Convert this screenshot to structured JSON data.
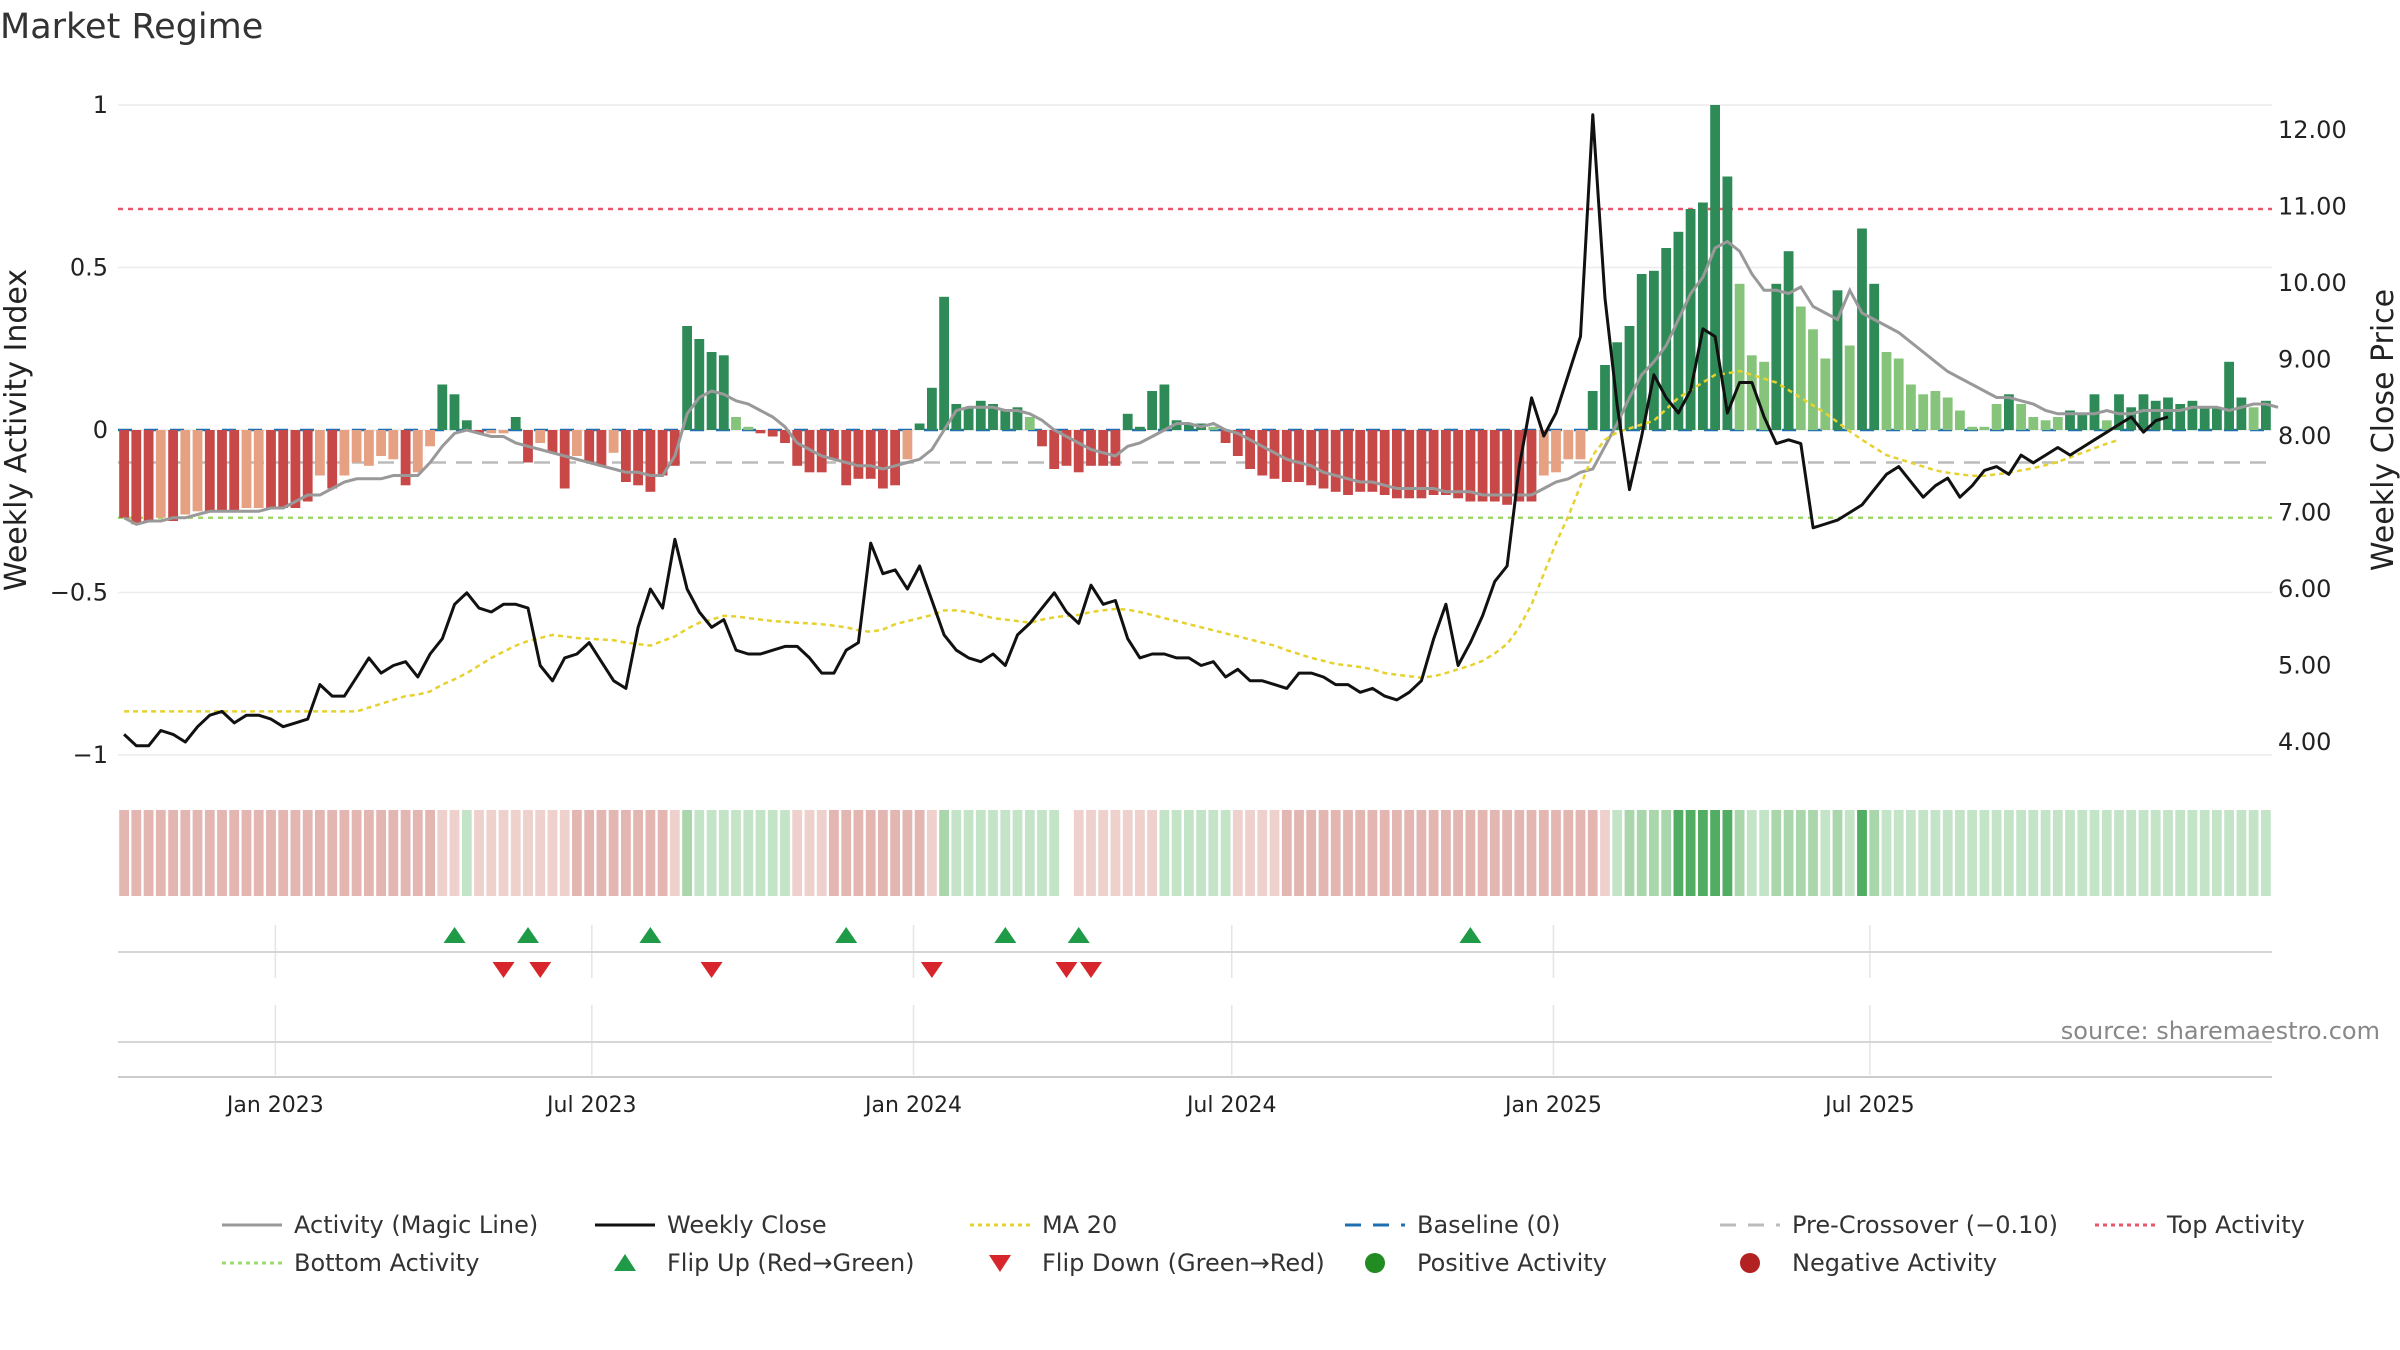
{
  "chart_data": {
    "type": "bar",
    "title": "Market Regime",
    "source": "source: sharemaestro.com",
    "ylabel": "Weekly Activity Index",
    "y2label": "Weekly Close Price",
    "ylim": [
      -1.05,
      1.05
    ],
    "y2lim": [
      3.8,
      12.4
    ],
    "yticks": [
      "1",
      "0.5",
      "0",
      "−0.5",
      "−1"
    ],
    "ytick_values": [
      1,
      0.5,
      0,
      -0.5,
      -1
    ],
    "y2ticks": [
      "12.00",
      "11.00",
      "10.00",
      "9.00",
      "8.00",
      "7.00",
      "6.00",
      "5.00",
      "4.00"
    ],
    "y2tick_values": [
      12,
      11,
      10,
      9,
      8,
      7,
      6,
      5,
      4
    ],
    "xticks": [
      "Jan 2023",
      "Jul 2023",
      "Jan 2024",
      "Jul 2024",
      "Jan 2025",
      "Jul 2025"
    ],
    "xtick_dates": [
      "2023-01-01",
      "2023-07-01",
      "2024-01-01",
      "2024-07-01",
      "2025-01-01",
      "2025-07-01"
    ],
    "start_date": "2022-10-03",
    "top_activity": 0.68,
    "bottom_activity": -0.27,
    "pre_crossover": -0.1,
    "baseline": 0,
    "activity": [
      -0.27,
      -0.29,
      -0.28,
      -0.27,
      -0.28,
      -0.26,
      -0.25,
      -0.25,
      -0.25,
      -0.25,
      -0.24,
      -0.24,
      -0.24,
      -0.24,
      -0.24,
      -0.22,
      -0.14,
      -0.18,
      -0.14,
      -0.1,
      -0.11,
      -0.08,
      -0.09,
      -0.17,
      -0.13,
      -0.05,
      0.14,
      0.11,
      0.03,
      -0.01,
      -0.01,
      -0.01,
      0.04,
      -0.1,
      -0.04,
      -0.07,
      -0.18,
      -0.08,
      -0.1,
      -0.11,
      -0.07,
      -0.16,
      -0.17,
      -0.19,
      -0.14,
      -0.11,
      0.32,
      0.28,
      0.24,
      0.23,
      0.04,
      0.01,
      -0.01,
      -0.02,
      -0.04,
      -0.11,
      -0.13,
      -0.13,
      -0.09,
      -0.17,
      -0.15,
      -0.15,
      -0.18,
      -0.17,
      -0.09,
      0.02,
      0.13,
      0.41,
      0.08,
      0.07,
      0.09,
      0.08,
      0.06,
      0.07,
      0.04,
      -0.05,
      -0.12,
      -0.11,
      -0.13,
      -0.11,
      -0.11,
      -0.11,
      0.05,
      0.01,
      0.12,
      0.14,
      0.03,
      0.02,
      0.02,
      0.01,
      -0.04,
      -0.08,
      -0.12,
      -0.14,
      -0.15,
      -0.16,
      -0.16,
      -0.17,
      -0.18,
      -0.19,
      -0.2,
      -0.19,
      -0.19,
      -0.2,
      -0.21,
      -0.21,
      -0.21,
      -0.2,
      -0.2,
      -0.21,
      -0.22,
      -0.22,
      -0.22,
      -0.23,
      -0.22,
      -0.22,
      -0.14,
      -0.13,
      -0.09,
      -0.09,
      0.12,
      0.2,
      0.27,
      0.32,
      0.48,
      0.49,
      0.56,
      0.61,
      0.68,
      0.7,
      1.0,
      0.78,
      0.45,
      0.23,
      0.21,
      0.45,
      0.55,
      0.38,
      0.31,
      0.22,
      0.43,
      0.26,
      0.62,
      0.45,
      0.24,
      0.22,
      0.14,
      0.11,
      0.12,
      0.1,
      0.06,
      0.01,
      0.01,
      0.08,
      0.11,
      0.08,
      0.04,
      0.03,
      0.04,
      0.06,
      0.05,
      0.11,
      0.03,
      0.11,
      0.07,
      0.11,
      0.09,
      0.1,
      0.08,
      0.09,
      0.07,
      0.07,
      0.21,
      0.1,
      0.07,
      0.09
    ],
    "activity_line": [
      -0.27,
      -0.29,
      -0.28,
      -0.28,
      -0.27,
      -0.27,
      -0.26,
      -0.25,
      -0.25,
      -0.25,
      -0.25,
      -0.25,
      -0.24,
      -0.24,
      -0.22,
      -0.2,
      -0.2,
      -0.18,
      -0.16,
      -0.15,
      -0.15,
      -0.15,
      -0.14,
      -0.14,
      -0.14,
      -0.1,
      -0.05,
      -0.01,
      0.0,
      -0.01,
      -0.02,
      -0.02,
      -0.04,
      -0.05,
      -0.06,
      -0.07,
      -0.08,
      -0.09,
      -0.1,
      -0.11,
      -0.12,
      -0.13,
      -0.13,
      -0.14,
      -0.14,
      -0.08,
      0.05,
      0.1,
      0.12,
      0.11,
      0.09,
      0.08,
      0.06,
      0.04,
      0.01,
      -0.04,
      -0.06,
      -0.08,
      -0.09,
      -0.1,
      -0.11,
      -0.11,
      -0.12,
      -0.11,
      -0.1,
      -0.09,
      -0.06,
      0.0,
      0.06,
      0.07,
      0.07,
      0.07,
      0.06,
      0.06,
      0.05,
      0.03,
      -0.0,
      -0.02,
      -0.04,
      -0.06,
      -0.07,
      -0.08,
      -0.05,
      -0.04,
      -0.02,
      0.0,
      0.02,
      0.02,
      0.01,
      0.02,
      0.0,
      -0.01,
      -0.03,
      -0.05,
      -0.07,
      -0.09,
      -0.1,
      -0.11,
      -0.13,
      -0.14,
      -0.15,
      -0.16,
      -0.16,
      -0.17,
      -0.18,
      -0.18,
      -0.18,
      -0.18,
      -0.19,
      -0.19,
      -0.19,
      -0.2,
      -0.2,
      -0.2,
      -0.2,
      -0.2,
      -0.18,
      -0.16,
      -0.15,
      -0.13,
      -0.12,
      -0.05,
      0.02,
      0.1,
      0.17,
      0.21,
      0.26,
      0.34,
      0.42,
      0.47,
      0.56,
      0.58,
      0.55,
      0.48,
      0.43,
      0.43,
      0.42,
      0.44,
      0.38,
      0.36,
      0.34,
      0.43,
      0.36,
      0.34,
      0.32,
      0.3,
      0.27,
      0.24,
      0.21,
      0.18,
      0.16,
      0.14,
      0.12,
      0.1,
      0.1,
      0.09,
      0.08,
      0.06,
      0.05,
      0.05,
      0.05,
      0.05,
      0.06,
      0.05,
      0.05,
      0.06,
      0.06,
      0.06,
      0.06,
      0.07,
      0.07,
      0.07,
      0.06,
      0.07,
      0.08,
      0.08,
      0.07
    ],
    "close": [
      4.1,
      3.95,
      3.95,
      4.15,
      4.1,
      4.0,
      4.2,
      4.35,
      4.4,
      4.25,
      4.35,
      4.35,
      4.3,
      4.2,
      4.25,
      4.3,
      4.75,
      4.6,
      4.6,
      4.85,
      5.1,
      4.9,
      5.0,
      5.05,
      4.85,
      5.15,
      5.35,
      5.8,
      5.95,
      5.75,
      5.7,
      5.8,
      5.8,
      5.75,
      5.0,
      4.8,
      5.1,
      5.15,
      5.3,
      5.05,
      4.8,
      4.7,
      5.5,
      6.0,
      5.75,
      6.65,
      6.0,
      5.7,
      5.5,
      5.6,
      5.2,
      5.15,
      5.15,
      5.2,
      5.25,
      5.25,
      5.1,
      4.9,
      4.9,
      5.2,
      5.3,
      6.6,
      6.2,
      6.25,
      6.0,
      6.3,
      5.85,
      5.4,
      5.2,
      5.1,
      5.05,
      5.15,
      5.0,
      5.4,
      5.55,
      5.75,
      5.95,
      5.7,
      5.55,
      6.05,
      5.8,
      5.85,
      5.35,
      5.1,
      5.15,
      5.15,
      5.1,
      5.1,
      5.0,
      5.05,
      4.85,
      4.95,
      4.8,
      4.8,
      4.75,
      4.7,
      4.9,
      4.9,
      4.85,
      4.75,
      4.75,
      4.65,
      4.7,
      4.6,
      4.55,
      4.65,
      4.8,
      5.35,
      5.8,
      5.0,
      5.3,
      5.65,
      6.1,
      6.3,
      7.6,
      8.5,
      8.0,
      8.3,
      8.8,
      9.3,
      12.2,
      9.8,
      8.4,
      7.3,
      8.0,
      8.8,
      8.5,
      8.3,
      8.6,
      9.4,
      9.3,
      8.3,
      8.7,
      8.7,
      8.25,
      7.9,
      7.95,
      7.9,
      6.8,
      6.85,
      6.9,
      7.0,
      7.1,
      7.3,
      7.5,
      7.6,
      7.4,
      7.2,
      7.35,
      7.45,
      7.2,
      7.35,
      7.55,
      7.6,
      7.5,
      7.75,
      7.65,
      7.75,
      7.85,
      7.75,
      7.85,
      7.95,
      8.05,
      8.15,
      8.25,
      8.05,
      8.2,
      8.25
    ],
    "ma20": [
      4.4,
      4.4,
      4.4,
      4.4,
      4.4,
      4.4,
      4.4,
      4.4,
      4.4,
      4.4,
      4.4,
      4.4,
      4.4,
      4.4,
      4.4,
      4.4,
      4.4,
      4.4,
      4.4,
      4.4,
      4.45,
      4.5,
      4.55,
      4.6,
      4.62,
      4.66,
      4.75,
      4.82,
      4.9,
      5.0,
      5.1,
      5.18,
      5.26,
      5.32,
      5.36,
      5.4,
      5.38,
      5.36,
      5.35,
      5.34,
      5.33,
      5.3,
      5.28,
      5.26,
      5.32,
      5.38,
      5.48,
      5.56,
      5.6,
      5.65,
      5.64,
      5.62,
      5.6,
      5.58,
      5.57,
      5.56,
      5.55,
      5.54,
      5.52,
      5.5,
      5.46,
      5.44,
      5.47,
      5.54,
      5.58,
      5.62,
      5.66,
      5.72,
      5.72,
      5.7,
      5.66,
      5.62,
      5.6,
      5.58,
      5.56,
      5.6,
      5.63,
      5.65,
      5.66,
      5.7,
      5.72,
      5.74,
      5.73,
      5.7,
      5.66,
      5.62,
      5.58,
      5.54,
      5.5,
      5.46,
      5.42,
      5.38,
      5.34,
      5.3,
      5.26,
      5.2,
      5.15,
      5.1,
      5.06,
      5.02,
      5.0,
      4.98,
      4.95,
      4.9,
      4.88,
      4.86,
      4.84,
      4.86,
      4.9,
      4.95,
      5.0,
      5.06,
      5.16,
      5.28,
      5.5,
      5.8,
      6.2,
      6.6,
      6.95,
      7.35,
      7.75,
      7.95,
      8.05,
      8.1,
      8.15,
      8.2,
      8.35,
      8.5,
      8.6,
      8.7,
      8.8,
      8.82,
      8.85,
      8.8,
      8.75,
      8.7,
      8.6,
      8.5,
      8.4,
      8.3,
      8.18,
      8.06,
      7.95,
      7.85,
      7.75,
      7.7,
      7.65,
      7.6,
      7.55,
      7.52,
      7.5,
      7.48,
      7.48,
      7.5,
      7.52,
      7.55,
      7.58,
      7.62,
      7.66,
      7.72,
      7.78,
      7.84,
      7.9,
      7.95
    ],
    "flip_up_weeks": [
      27,
      33,
      43,
      59,
      72,
      78,
      110
    ],
    "flip_down_weeks": [
      31,
      34,
      48,
      66,
      77,
      79
    ]
  },
  "legend": [
    {
      "label": "Activity (Magic Line)",
      "kind": "line",
      "color": "#999999"
    },
    {
      "label": "Weekly Close",
      "kind": "line",
      "color": "#111111"
    },
    {
      "label": "MA 20",
      "kind": "dotted",
      "color": "#e6d22e"
    },
    {
      "label": "Baseline (0)",
      "kind": "dashed",
      "color": "#1f6fb2"
    },
    {
      "label": "Pre-Crossover (−0.10)",
      "kind": "dashed",
      "color": "#bbbbbb"
    },
    {
      "label": "Top Activity",
      "kind": "dotted",
      "color": "#e8566c"
    },
    {
      "label": "Bottom Activity",
      "kind": "dotted",
      "color": "#9fd86b"
    },
    {
      "label": "Flip Up (Red→Green)",
      "kind": "tri-up",
      "color": "#1f9a46"
    },
    {
      "label": "Flip Down (Green→Red)",
      "kind": "tri-down",
      "color": "#d7262b"
    },
    {
      "label": "Positive Activity",
      "kind": "dot",
      "color": "#228b22"
    },
    {
      "label": "Negative Activity",
      "kind": "dot",
      "color": "#b22222"
    }
  ]
}
